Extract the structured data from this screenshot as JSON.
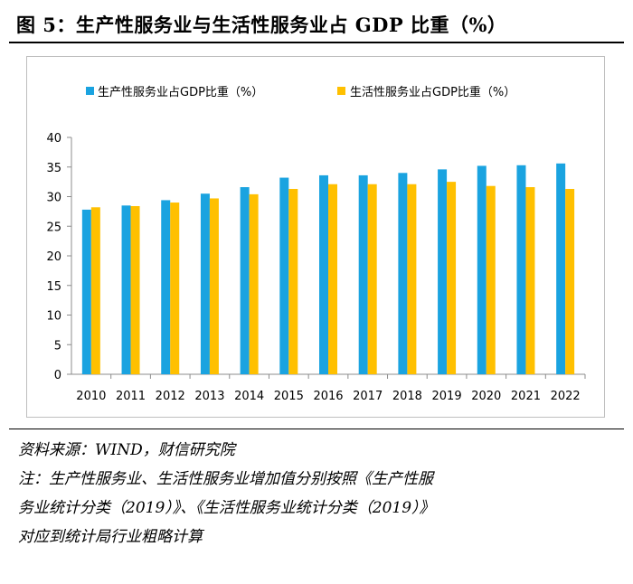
{
  "header": {
    "title": "图 5：生产性服务业与生活性服务业占 GDP 比重（%）"
  },
  "chart_data": {
    "type": "bar",
    "title": "图 5：生产性服务业与生活性服务业占 GDP 比重（%）",
    "categories": [
      "2010",
      "2011",
      "2012",
      "2013",
      "2014",
      "2015",
      "2016",
      "2017",
      "2018",
      "2019",
      "2020",
      "2021",
      "2022"
    ],
    "series": [
      {
        "name": "生产性服务业占GDP比重（%）",
        "color": "#1aa3e0",
        "values": [
          27.8,
          28.5,
          29.4,
          30.5,
          31.6,
          33.2,
          33.6,
          33.6,
          34.0,
          34.6,
          35.2,
          35.3,
          35.6
        ]
      },
      {
        "name": "生活性服务业占GDP比重（%）",
        "color": "#ffc000",
        "values": [
          28.2,
          28.4,
          29.0,
          29.7,
          30.4,
          31.3,
          32.1,
          32.1,
          32.1,
          32.5,
          31.8,
          31.6,
          31.3
        ]
      }
    ],
    "xlabel": "",
    "ylabel": "",
    "ylim": [
      0,
      40
    ],
    "yticks": [
      0,
      5,
      10,
      15,
      20,
      25,
      30,
      35,
      40
    ],
    "grid": false,
    "legend_position": "top"
  },
  "footer": {
    "source": "资料来源：WIND，财信研究院",
    "note_line1": "注：生产性服务业、生活性服务业增加值分别按照《生产性服",
    "note_line2": "务业统计分类（2019）》、《生活性服务业统计分类（2019）》",
    "note_line3": "对应到统计局行业粗略计算"
  }
}
